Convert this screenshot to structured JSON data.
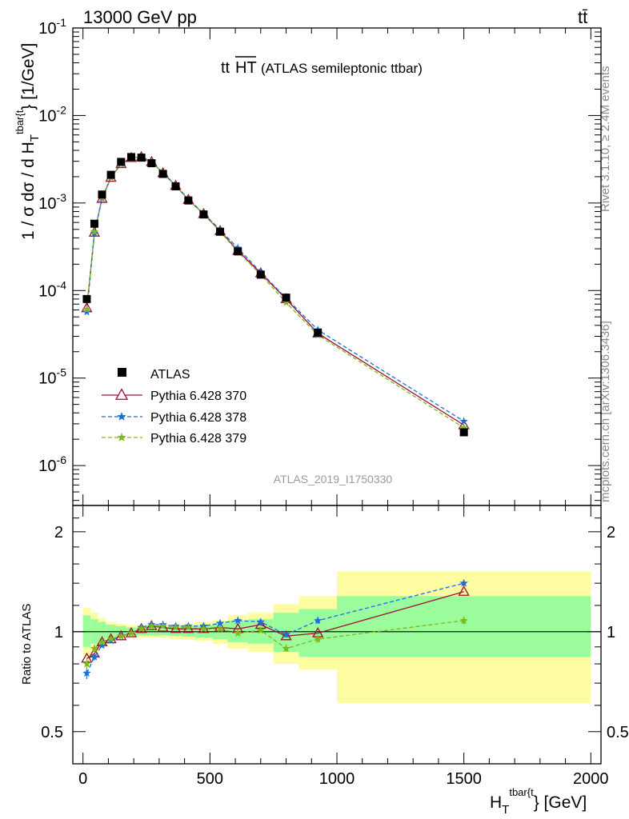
{
  "header": {
    "energy_label": "13000 GeV pp",
    "process_label": "tt̄",
    "plot_title_main": "tt",
    "plot_title_over": "HT",
    "plot_title_note": "(ATLAS semileptonic ttbar)",
    "analysis_id": "ATLAS_2019_I1750330",
    "side_rivet": "Rivet 3.1.10, ≥ 2.4M events",
    "side_mcplots": "mcplots.cern.ch [arXiv:1306.3436]"
  },
  "axes": {
    "y_label": "1 / σ dσ / d H",
    "y_label_sub": "T",
    "y_label_sup": "tbar{t",
    "y_label_unit": "} [1/GeV]",
    "x_label": "H",
    "x_label_sub": "T",
    "x_label_sup": "tbar{t",
    "x_label_unit": "} [GeV]",
    "ratio_label": "Ratio to ATLAS",
    "x_ticks": [
      "0",
      "500",
      "1000",
      "1500",
      "2000"
    ],
    "ratio_ticks": [
      "2",
      "1",
      "0.5"
    ]
  },
  "legend": [
    {
      "label": "ATLAS"
    },
    {
      "label": "Pythia 6.428 370"
    },
    {
      "label": "Pythia 6.428 378"
    },
    {
      "label": "Pythia 6.428 379"
    }
  ],
  "colors": {
    "data": "#000000",
    "p370": "#9c1030",
    "p378": "#1a6fe0",
    "p379": "#7fb81a",
    "band_inner": "#9bfc9b",
    "band_outer": "#fdfca0",
    "side_text": "#888888"
  },
  "chart_data": {
    "type": "line",
    "x": [
      15,
      45,
      75,
      110,
      150,
      190,
      230,
      270,
      315,
      365,
      415,
      475,
      540,
      610,
      700,
      800,
      925,
      1500
    ],
    "xlim": [
      -40,
      2040
    ],
    "ylim": [
      3.5e-07,
      0.1
    ],
    "ylog": true,
    "y_ticks": [
      "10^-6",
      "10^-5",
      "10^-4",
      "10^-3",
      "10^-2",
      "10^-1"
    ],
    "series": [
      {
        "name": "ATLAS",
        "values": [
          8e-05,
          0.00058,
          0.00125,
          0.0021,
          0.00295,
          0.00335,
          0.0033,
          0.00285,
          0.00215,
          0.00155,
          0.00107,
          0.00074,
          0.00047,
          0.00028,
          0.000152,
          8.3e-05,
          3.3e-05,
          2.4e-06
        ]
      },
      {
        "name": "Pythia 6.428 370",
        "values": [
          6.3e-05,
          0.00046,
          0.00112,
          0.00195,
          0.0028,
          0.00328,
          0.00335,
          0.00295,
          0.0022,
          0.00158,
          0.00109,
          0.00075,
          0.00048,
          0.000285,
          0.000158,
          8e-05,
          3.25e-05,
          2.9e-06
        ]
      },
      {
        "name": "Pythia 6.428 378",
        "values": [
          5.7e-05,
          0.00045,
          0.00113,
          0.00196,
          0.00282,
          0.0033,
          0.00338,
          0.00298,
          0.00222,
          0.0016,
          0.00111,
          0.00076,
          0.000495,
          0.000305,
          0.000162,
          8.2e-05,
          3.55e-05,
          3.2e-06
        ]
      },
      {
        "name": "Pythia 6.428 379",
        "values": [
          6.1e-05,
          0.00047,
          0.00115,
          0.00197,
          0.00282,
          0.0033,
          0.00335,
          0.00295,
          0.0022,
          0.00158,
          0.00109,
          0.00075,
          0.00047,
          0.000278,
          0.000152,
          7.3e-05,
          3.1e-05,
          2.7e-06
        ]
      }
    ],
    "ratio": {
      "ylim": [
        0.4,
        2.4
      ],
      "ylog": true,
      "series": [
        {
          "name": "Pythia 6.428 370",
          "values": [
            0.83,
            0.86,
            0.93,
            0.95,
            0.97,
            0.99,
            1.02,
            1.04,
            1.03,
            1.02,
            1.02,
            1.02,
            1.03,
            1.02,
            1.05,
            0.97,
            0.99,
            1.32
          ]
        },
        {
          "name": "Pythia 6.428 378",
          "values": [
            0.75,
            0.84,
            0.91,
            0.94,
            0.97,
            0.99,
            1.03,
            1.05,
            1.05,
            1.04,
            1.04,
            1.04,
            1.06,
            1.08,
            1.07,
            0.98,
            1.08,
            1.4
          ]
        },
        {
          "name": "Pythia 6.428 379",
          "values": [
            0.8,
            0.89,
            0.93,
            0.95,
            0.97,
            0.99,
            1.02,
            1.04,
            1.04,
            1.03,
            1.03,
            1.02,
            1.02,
            0.99,
            1.01,
            0.89,
            0.95,
            1.08
          ]
        }
      ],
      "band_edges": [
        0,
        30,
        60,
        90,
        130,
        170,
        210,
        250,
        290,
        340,
        390,
        440,
        510,
        570,
        650,
        750,
        850,
        1000,
        2000
      ],
      "band_inner": [
        [
          0.9,
          1.12
        ],
        [
          0.92,
          1.09
        ],
        [
          0.94,
          1.07
        ],
        [
          0.96,
          1.05
        ],
        [
          0.97,
          1.04
        ],
        [
          0.975,
          1.03
        ],
        [
          0.975,
          1.03
        ],
        [
          0.975,
          1.03
        ],
        [
          0.975,
          1.03
        ],
        [
          0.97,
          1.035
        ],
        [
          0.965,
          1.04
        ],
        [
          0.96,
          1.045
        ],
        [
          0.95,
          1.06
        ],
        [
          0.93,
          1.08
        ],
        [
          0.92,
          1.09
        ],
        [
          0.87,
          1.14
        ],
        [
          0.84,
          1.17
        ],
        [
          0.84,
          1.28
        ]
      ],
      "band_outer": [
        [
          0.84,
          1.18
        ],
        [
          0.87,
          1.14
        ],
        [
          0.91,
          1.1
        ],
        [
          0.94,
          1.07
        ],
        [
          0.955,
          1.055
        ],
        [
          0.96,
          1.045
        ],
        [
          0.96,
          1.045
        ],
        [
          0.96,
          1.045
        ],
        [
          0.96,
          1.045
        ],
        [
          0.95,
          1.05
        ],
        [
          0.945,
          1.06
        ],
        [
          0.94,
          1.07
        ],
        [
          0.92,
          1.08
        ],
        [
          0.89,
          1.12
        ],
        [
          0.87,
          1.14
        ],
        [
          0.8,
          1.21
        ],
        [
          0.77,
          1.28
        ],
        [
          0.61,
          1.52
        ]
      ],
      "errors_378": [
        0.03,
        0.02,
        0.015,
        0.012,
        0.01,
        0.01,
        0.01,
        0.01,
        0.01,
        0.01,
        0.01,
        0.01,
        0.012,
        0.014,
        0.016,
        0.02,
        0.025,
        0.03
      ],
      "errors_379": [
        0.03,
        0.02,
        0.015,
        0.012,
        0.01,
        0.01,
        0.01,
        0.01,
        0.01,
        0.01,
        0.01,
        0.01,
        0.012,
        0.014,
        0.016,
        0.02,
        0.025,
        0.03
      ]
    }
  }
}
